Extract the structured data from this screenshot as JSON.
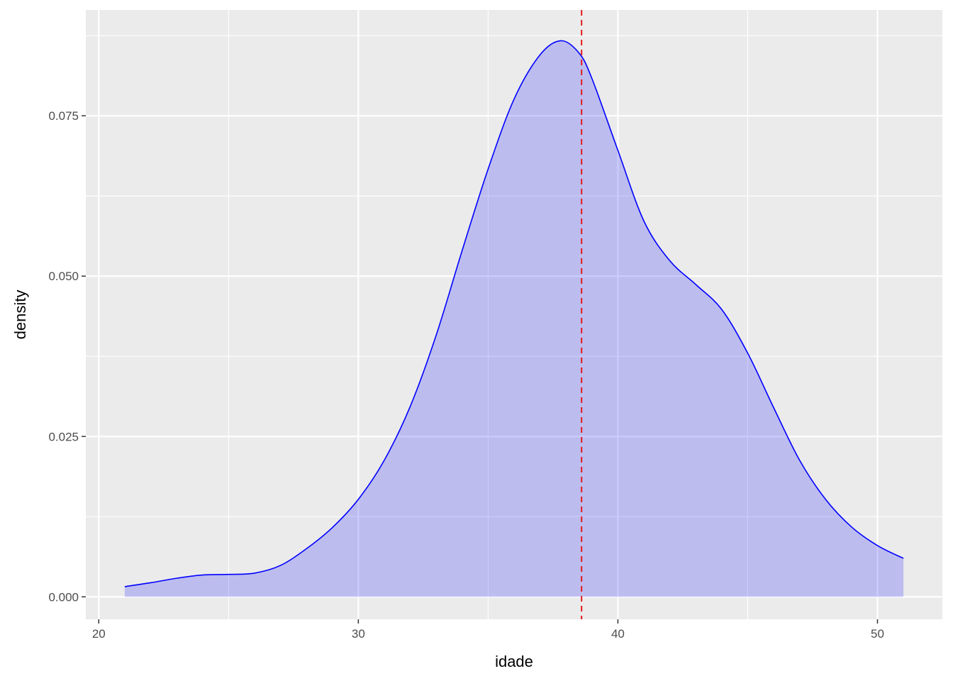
{
  "chart_data": {
    "type": "area",
    "title": "",
    "xlabel": "idade",
    "ylabel": "density",
    "xlim": [
      19.5,
      52.5
    ],
    "ylim": [
      -0.0035,
      0.0915
    ],
    "x_ticks": [
      20,
      30,
      40,
      50
    ],
    "x_tick_labels": [
      "20",
      "30",
      "40",
      "50"
    ],
    "x_minor_ticks": [
      25,
      35,
      45
    ],
    "y_ticks": [
      0,
      0.025,
      0.05,
      0.075
    ],
    "y_tick_labels": [
      "0.000",
      "0.025",
      "0.050",
      "0.075"
    ],
    "y_minor_ticks": [
      0.0125,
      0.0375,
      0.0625,
      0.0875
    ],
    "grid": true,
    "legend": "none",
    "series": [
      {
        "x": [
          21,
          22,
          23,
          24,
          25,
          26,
          27,
          28,
          29,
          30,
          31,
          32,
          33,
          34,
          35,
          36,
          37,
          37.8,
          38.5,
          39,
          40,
          41,
          42,
          43,
          44,
          45,
          46,
          47,
          48,
          49,
          50,
          51
        ],
        "y": [
          0.0016,
          0.0022,
          0.0029,
          0.0034,
          0.0035,
          0.0037,
          0.0049,
          0.0075,
          0.0108,
          0.0152,
          0.0213,
          0.0297,
          0.0408,
          0.054,
          0.0667,
          0.0776,
          0.0845,
          0.0867,
          0.0848,
          0.0808,
          0.0696,
          0.0586,
          0.0524,
          0.0487,
          0.0448,
          0.038,
          0.0295,
          0.0213,
          0.0152,
          0.0109,
          0.008,
          0.006
        ],
        "line_color": "#0000ff",
        "fill_color": "#0000ff",
        "fill_opacity": 0.2
      }
    ],
    "reference_lines": [
      {
        "orientation": "vertical",
        "x": 38.6,
        "color": "#e41a1c",
        "style": "dashed"
      }
    ],
    "panel_background": "#ebebeb",
    "grid_color": "#ffffff"
  }
}
